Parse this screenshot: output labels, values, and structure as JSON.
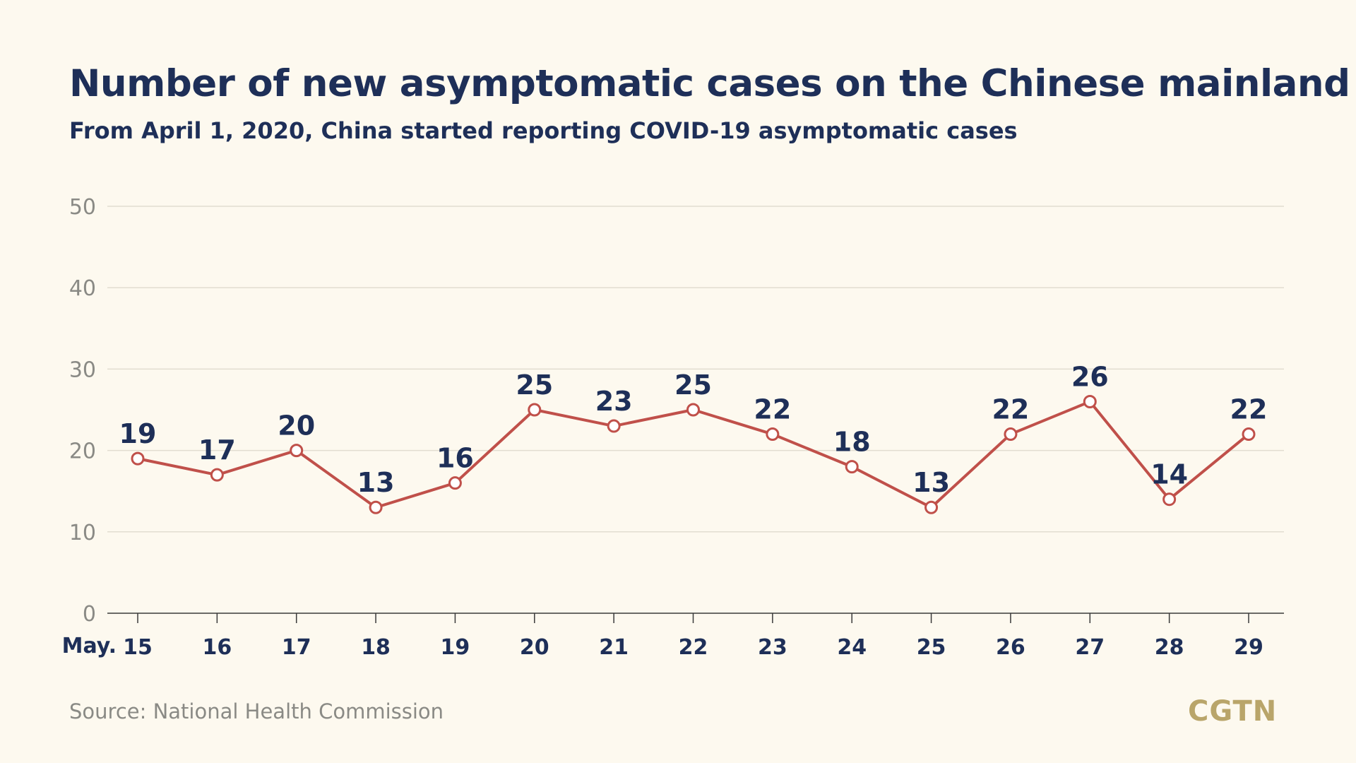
{
  "chart_data": {
    "type": "line",
    "title": "Number of new asymptomatic cases on the Chinese mainland",
    "subtitle": "From April 1, 2020, China started reporting COVID-19 asymptomatic cases",
    "x_prefix_label": "May.",
    "categories": [
      "15",
      "16",
      "17",
      "18",
      "19",
      "20",
      "21",
      "22",
      "23",
      "24",
      "25",
      "26",
      "27",
      "28",
      "29"
    ],
    "values": [
      19,
      17,
      20,
      13,
      16,
      25,
      23,
      25,
      22,
      18,
      13,
      22,
      26,
      14,
      22
    ],
    "data_labels": [
      "19",
      "17",
      "20",
      "13",
      "16",
      "25",
      "23",
      "25",
      "22",
      "18",
      "13",
      "22",
      "26",
      "14",
      "22"
    ],
    "ylim": [
      0,
      50
    ],
    "yticks": [
      "0",
      "10",
      "20",
      "30",
      "40",
      "50"
    ],
    "grid": true,
    "legend": "none",
    "colors": {
      "line": "#c0504a",
      "text": "#1e2f58",
      "axis_text": "#8a8a85",
      "grid": "#e2ddd0",
      "background": "#fdf9ef"
    }
  },
  "footer": {
    "source": "Source: National Health Commission",
    "logo": "CGTN"
  }
}
